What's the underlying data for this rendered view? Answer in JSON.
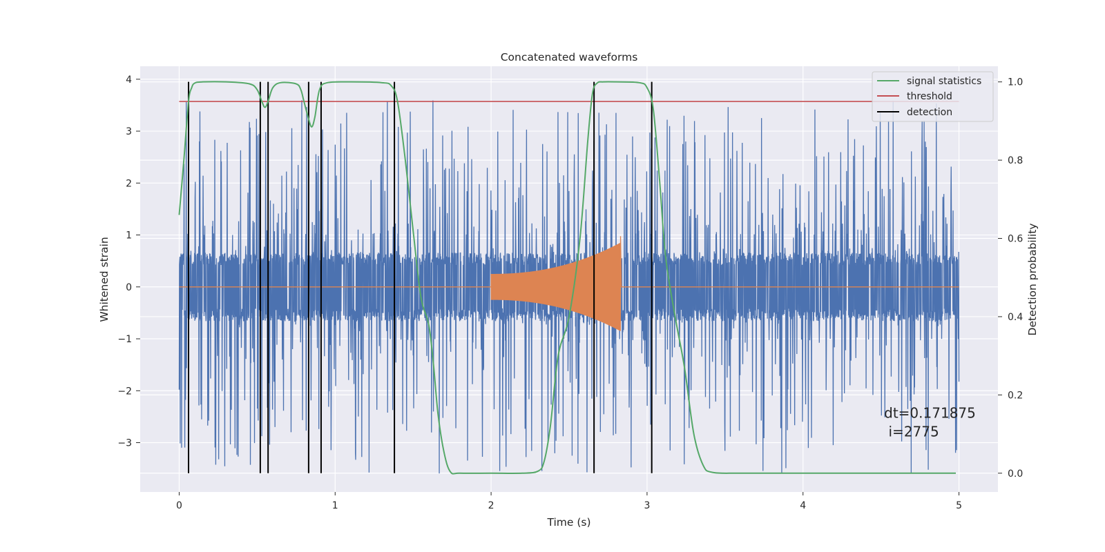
{
  "chart_data": {
    "type": "line",
    "title": "Concatenated waveforms",
    "xlabel": "Time (s)",
    "ylabel": "Whitened strain",
    "y2label": "Detection probability",
    "xlim": [
      -0.25,
      5.25
    ],
    "ylim": [
      -3.95,
      4.25
    ],
    "y2lim": [
      -0.048,
      1.04
    ],
    "xticks": [
      0,
      1,
      2,
      3,
      4,
      5
    ],
    "yticks": [
      -3,
      -2,
      -1,
      0,
      1,
      2,
      3,
      4
    ],
    "y2ticks": [
      0.0,
      0.2,
      0.4,
      0.6,
      0.8,
      1.0
    ],
    "xtick_labels": [
      "0",
      "1",
      "2",
      "3",
      "4",
      "5"
    ],
    "ytick_labels": [
      "−3",
      "−2",
      "−1",
      "0",
      "1",
      "2",
      "3",
      "4"
    ],
    "y2tick_labels": [
      "0.0",
      "0.2",
      "0.4",
      "0.6",
      "0.8",
      "1.0"
    ],
    "grid": true,
    "legend_position": "top-right",
    "legend": [
      "signal statistics",
      "threshold",
      "detection"
    ],
    "colors": {
      "strain": "#4c72b0",
      "template": "#dd8452",
      "signal_statistics": "#55a868",
      "threshold": "#c44e52",
      "detection": "#000000",
      "axes_bg": "#eaeaf2",
      "grid": "#ffffff"
    },
    "strain": {
      "time_range": [
        0,
        5
      ],
      "core_amplitude": 0.6,
      "max": 3.9,
      "min": -3.6
    },
    "template": {
      "chirp_start": 2.0,
      "chirp_end": 2.83,
      "amplitude_start": 0.25,
      "amplitude_peak": 0.85
    },
    "signal_statistics": {
      "x": [
        0.0,
        0.03,
        0.06,
        0.08,
        0.1,
        0.15,
        0.3,
        0.45,
        0.5,
        0.53,
        0.55,
        0.57,
        0.6,
        0.65,
        0.75,
        0.78,
        0.8,
        0.83,
        0.85,
        0.87,
        0.9,
        0.95,
        1.1,
        1.3,
        1.36,
        1.4,
        1.45,
        1.5,
        1.55,
        1.6,
        1.63,
        1.66,
        1.7,
        1.74,
        1.8,
        2.0,
        2.2,
        2.3,
        2.34,
        2.38,
        2.43,
        2.5,
        2.57,
        2.62,
        2.65,
        2.68,
        2.72,
        2.8,
        2.95,
        3.0,
        3.04,
        3.08,
        3.12,
        3.18,
        3.24,
        3.3,
        3.36,
        3.42,
        3.6,
        4.0,
        4.5,
        4.98
      ],
      "y": [
        0.66,
        0.8,
        0.95,
        0.985,
        0.997,
        1.0,
        1.0,
        0.995,
        0.98,
        0.95,
        0.935,
        0.95,
        0.985,
        0.998,
        0.995,
        0.98,
        0.95,
        0.905,
        0.885,
        0.91,
        0.98,
        0.998,
        1.0,
        0.998,
        0.99,
        0.95,
        0.8,
        0.62,
        0.45,
        0.38,
        0.28,
        0.15,
        0.05,
        0.003,
        0.0,
        0.0,
        0.0,
        0.005,
        0.03,
        0.12,
        0.3,
        0.4,
        0.6,
        0.85,
        0.97,
        0.997,
        1.0,
        1.0,
        0.998,
        0.985,
        0.93,
        0.75,
        0.55,
        0.4,
        0.27,
        0.1,
        0.02,
        0.002,
        0.0,
        0.0,
        0.0,
        0.0
      ]
    },
    "threshold": {
      "value": 0.95,
      "x_range": [
        0,
        5
      ]
    },
    "detections": [
      0.06,
      0.52,
      0.57,
      0.83,
      0.91,
      1.38,
      2.66,
      3.03
    ],
    "annotation": {
      "lines": [
        "dt=0.171875",
        " i=2775"
      ],
      "x": 4.52,
      "y": 0.12
    }
  }
}
